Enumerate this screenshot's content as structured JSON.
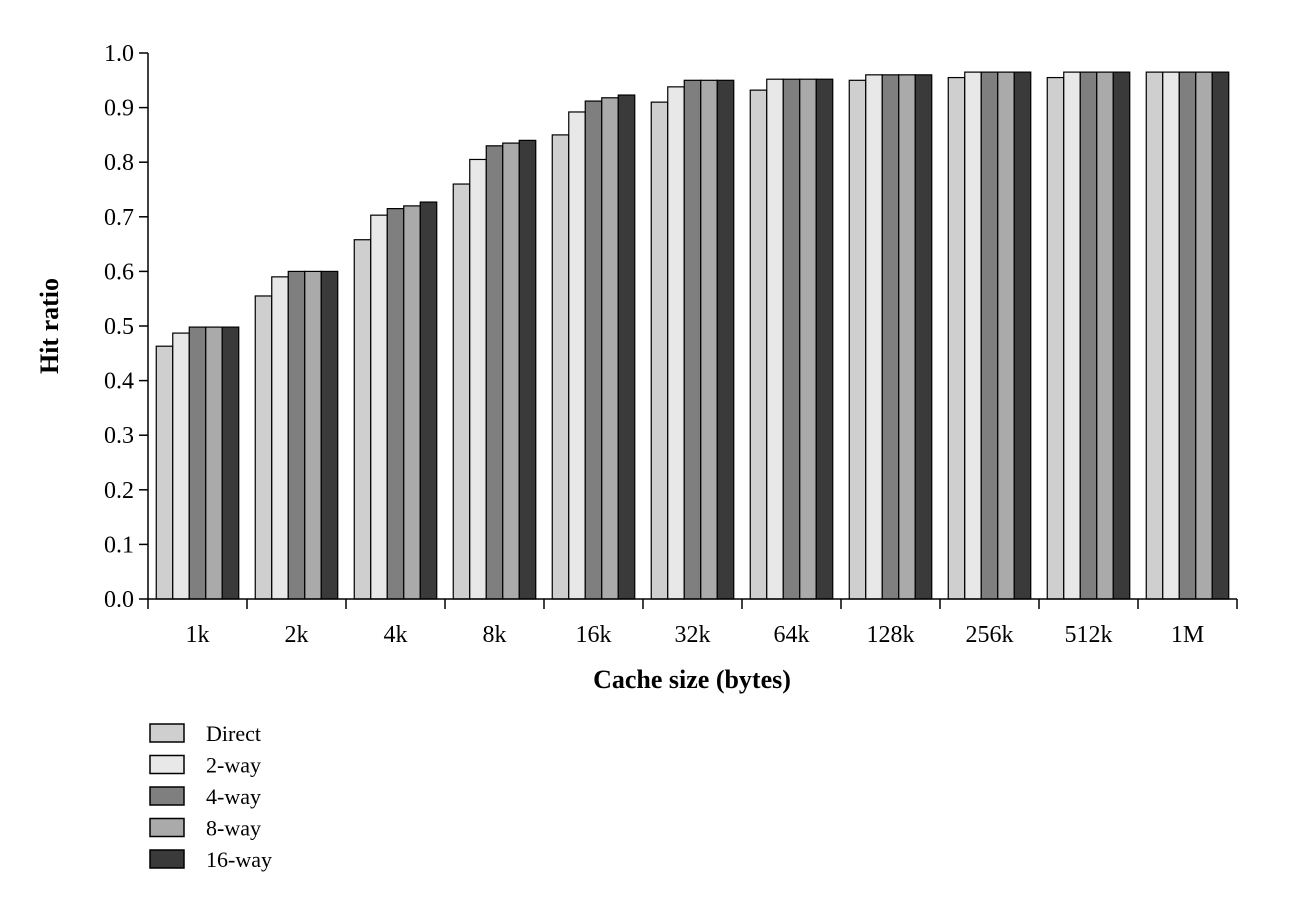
{
  "chart_data": {
    "type": "bar",
    "title": "",
    "xlabel": "Cache size (bytes)",
    "ylabel": "Hit ratio",
    "ylim": [
      0.0,
      1.0
    ],
    "yticks": [
      "0.0",
      "0.1",
      "0.2",
      "0.3",
      "0.4",
      "0.5",
      "0.6",
      "0.7",
      "0.8",
      "0.9",
      "1.0"
    ],
    "categories": [
      "1k",
      "2k",
      "4k",
      "8k",
      "16k",
      "32k",
      "64k",
      "128k",
      "256k",
      "512k",
      "1M"
    ],
    "grid": false,
    "legend_position": "bottom-left",
    "series": [
      {
        "name": "Direct",
        "color": "#cfcfcf",
        "values": [
          0.463,
          0.555,
          0.658,
          0.76,
          0.85,
          0.91,
          0.932,
          0.95,
          0.955,
          0.955,
          0.965
        ]
      },
      {
        "name": "2-way",
        "color": "#e8e8e8",
        "values": [
          0.487,
          0.59,
          0.703,
          0.805,
          0.892,
          0.938,
          0.952,
          0.96,
          0.965,
          0.965,
          0.965
        ]
      },
      {
        "name": "4-way",
        "color": "#7f7f7f",
        "values": [
          0.498,
          0.6,
          0.715,
          0.83,
          0.912,
          0.95,
          0.952,
          0.96,
          0.965,
          0.965,
          0.965
        ]
      },
      {
        "name": "8-way",
        "color": "#aaaaaa",
        "values": [
          0.498,
          0.6,
          0.72,
          0.835,
          0.918,
          0.95,
          0.952,
          0.96,
          0.965,
          0.965,
          0.965
        ]
      },
      {
        "name": "16-way",
        "color": "#3a3a3a",
        "values": [
          0.498,
          0.6,
          0.727,
          0.84,
          0.923,
          0.95,
          0.952,
          0.96,
          0.965,
          0.965,
          0.965
        ]
      }
    ]
  }
}
